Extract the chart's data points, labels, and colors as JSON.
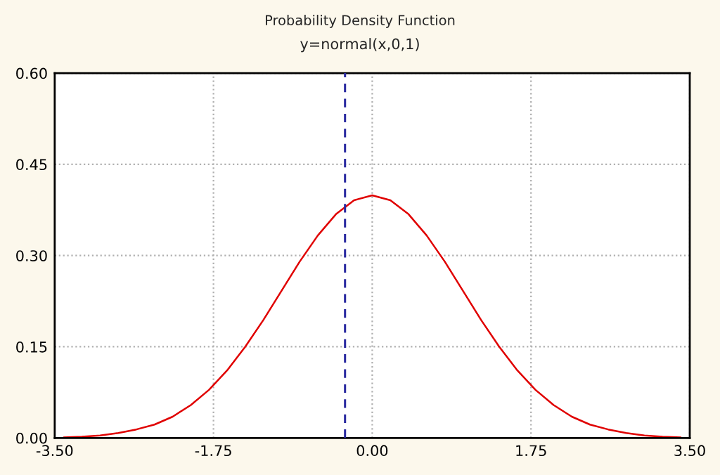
{
  "chart_data": {
    "type": "line",
    "title": "Probability Density Function",
    "subtitle": "y=normal(x,0,1)",
    "series": [
      {
        "color": "#e00000",
        "x": [
          -3.4,
          -3.2,
          -3.0,
          -2.8,
          -2.6,
          -2.4,
          -2.2,
          -2.0,
          -1.8,
          -1.6,
          -1.4,
          -1.2,
          -1.0,
          -0.8,
          -0.6,
          -0.4,
          -0.2,
          0.0,
          0.2,
          0.4,
          0.6,
          0.8,
          1.0,
          1.2,
          1.4,
          1.6,
          1.8,
          2.0,
          2.2,
          2.4,
          2.6,
          2.8,
          3.0,
          3.2,
          3.4
        ],
        "values": [
          0.001,
          0.002,
          0.004,
          0.008,
          0.014,
          0.022,
          0.035,
          0.054,
          0.079,
          0.111,
          0.15,
          0.194,
          0.242,
          0.29,
          0.333,
          0.368,
          0.391,
          0.399,
          0.391,
          0.368,
          0.333,
          0.29,
          0.242,
          0.194,
          0.15,
          0.111,
          0.079,
          0.054,
          0.035,
          0.022,
          0.014,
          0.008,
          0.004,
          0.002,
          0.001
        ]
      }
    ],
    "xlim": [
      -3.5,
      3.5
    ],
    "xticks": [
      {
        "value": -3.5,
        "label": "-3.50"
      },
      {
        "value": -1.75,
        "label": "-1.75"
      },
      {
        "value": 0,
        "label": "0.00"
      },
      {
        "value": 1.75,
        "label": "1.75"
      },
      {
        "value": 3.5,
        "label": "3.50"
      }
    ],
    "ylim": [
      0,
      0.6
    ],
    "yticks": [
      {
        "value": 0,
        "label": "0.00"
      },
      {
        "value": 0.15,
        "label": "0.15"
      },
      {
        "value": 0.3,
        "label": "0.30"
      },
      {
        "value": 0.45,
        "label": "0.45"
      },
      {
        "value": 0.6,
        "label": "0.60"
      }
    ],
    "ref_lines": [
      {
        "axis": "x",
        "value": -0.3,
        "color": "#2a2aa0",
        "line_style": "dashed"
      }
    ],
    "grid": true,
    "line_style": "solid",
    "marker": "none"
  }
}
